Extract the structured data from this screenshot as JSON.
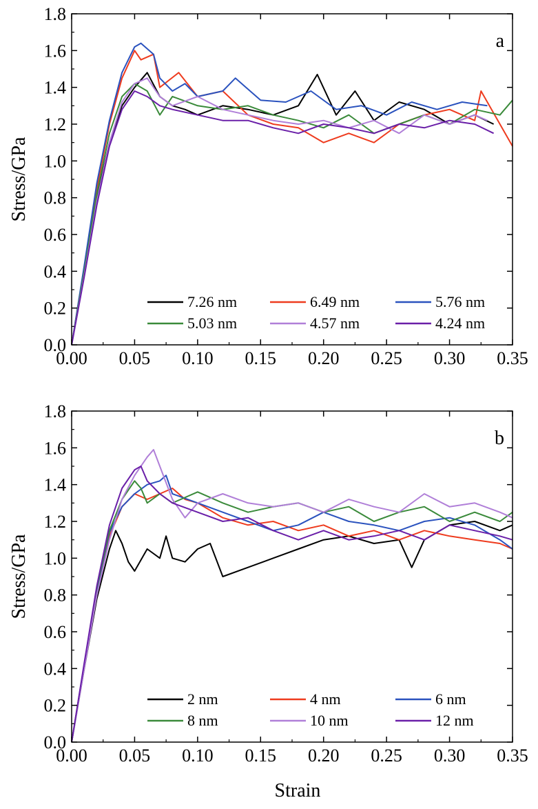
{
  "chart_data": [
    {
      "type": "line",
      "panel_label": "a",
      "xlabel": "",
      "ylabel": "Stress/GPa",
      "xlim": [
        0,
        0.35
      ],
      "ylim": [
        0,
        1.8
      ],
      "xticks": [
        "0.00",
        "0.05",
        "0.10",
        "0.15",
        "0.20",
        "0.25",
        "0.30",
        "0.35"
      ],
      "yticks": [
        "0.0",
        "0.2",
        "0.4",
        "0.6",
        "0.8",
        "1.0",
        "1.2",
        "1.4",
        "1.6",
        "1.8"
      ],
      "legend_position": "bottom-right",
      "series": [
        {
          "name": "7.26 nm",
          "color": "#000000",
          "x": [
            0,
            0.01,
            0.02,
            0.03,
            0.04,
            0.05,
            0.06,
            0.07,
            0.08,
            0.09,
            0.1,
            0.12,
            0.14,
            0.16,
            0.18,
            0.195,
            0.21,
            0.225,
            0.24,
            0.26,
            0.28,
            0.3,
            0.32,
            0.335
          ],
          "y": [
            0,
            0.4,
            0.8,
            1.1,
            1.3,
            1.4,
            1.48,
            1.35,
            1.3,
            1.28,
            1.25,
            1.3,
            1.28,
            1.25,
            1.3,
            1.47,
            1.25,
            1.38,
            1.22,
            1.32,
            1.28,
            1.2,
            1.25,
            1.2
          ]
        },
        {
          "name": "6.49 nm",
          "color": "#ee3b1e",
          "x": [
            0,
            0.01,
            0.02,
            0.03,
            0.04,
            0.05,
            0.055,
            0.065,
            0.07,
            0.085,
            0.1,
            0.12,
            0.14,
            0.16,
            0.18,
            0.2,
            0.22,
            0.24,
            0.26,
            0.28,
            0.3,
            0.32,
            0.325,
            0.35
          ],
          "y": [
            0,
            0.42,
            0.85,
            1.2,
            1.45,
            1.6,
            1.55,
            1.58,
            1.4,
            1.48,
            1.35,
            1.38,
            1.25,
            1.2,
            1.18,
            1.1,
            1.15,
            1.1,
            1.2,
            1.25,
            1.28,
            1.22,
            1.38,
            1.08
          ]
        },
        {
          "name": "5.76 nm",
          "color": "#2a52be",
          "x": [
            0,
            0.01,
            0.02,
            0.03,
            0.04,
            0.05,
            0.055,
            0.065,
            0.07,
            0.08,
            0.09,
            0.1,
            0.12,
            0.13,
            0.15,
            0.17,
            0.19,
            0.21,
            0.23,
            0.25,
            0.27,
            0.29,
            0.31,
            0.33
          ],
          "y": [
            0,
            0.43,
            0.88,
            1.22,
            1.48,
            1.62,
            1.64,
            1.58,
            1.45,
            1.38,
            1.42,
            1.35,
            1.38,
            1.45,
            1.33,
            1.32,
            1.38,
            1.28,
            1.3,
            1.25,
            1.32,
            1.28,
            1.32,
            1.3
          ]
        },
        {
          "name": "5.03 nm",
          "color": "#3a8a3a",
          "x": [
            0,
            0.01,
            0.02,
            0.03,
            0.04,
            0.05,
            0.06,
            0.07,
            0.08,
            0.1,
            0.12,
            0.14,
            0.16,
            0.18,
            0.2,
            0.22,
            0.24,
            0.26,
            0.28,
            0.3,
            0.32,
            0.34,
            0.35
          ],
          "y": [
            0,
            0.4,
            0.82,
            1.15,
            1.35,
            1.42,
            1.38,
            1.25,
            1.35,
            1.3,
            1.28,
            1.3,
            1.25,
            1.22,
            1.18,
            1.25,
            1.15,
            1.2,
            1.25,
            1.2,
            1.28,
            1.25,
            1.33
          ]
        },
        {
          "name": "4.57 nm",
          "color": "#b07fd8",
          "x": [
            0,
            0.01,
            0.02,
            0.03,
            0.04,
            0.05,
            0.06,
            0.07,
            0.08,
            0.1,
            0.12,
            0.14,
            0.16,
            0.18,
            0.2,
            0.22,
            0.24,
            0.26,
            0.28,
            0.3,
            0.32,
            0.33
          ],
          "y": [
            0,
            0.38,
            0.78,
            1.1,
            1.32,
            1.42,
            1.45,
            1.35,
            1.3,
            1.35,
            1.28,
            1.25,
            1.22,
            1.2,
            1.22,
            1.18,
            1.22,
            1.15,
            1.25,
            1.2,
            1.25,
            1.22
          ]
        },
        {
          "name": "4.24 nm",
          "color": "#6a1fa8",
          "x": [
            0,
            0.01,
            0.02,
            0.03,
            0.04,
            0.05,
            0.06,
            0.07,
            0.08,
            0.1,
            0.12,
            0.14,
            0.16,
            0.18,
            0.2,
            0.22,
            0.24,
            0.26,
            0.28,
            0.3,
            0.32,
            0.335
          ],
          "y": [
            0,
            0.37,
            0.76,
            1.08,
            1.28,
            1.38,
            1.35,
            1.3,
            1.28,
            1.25,
            1.22,
            1.22,
            1.18,
            1.15,
            1.2,
            1.18,
            1.15,
            1.2,
            1.18,
            1.22,
            1.2,
            1.15
          ]
        }
      ]
    },
    {
      "type": "line",
      "panel_label": "b",
      "xlabel": "Strain",
      "ylabel": "Stress/GPa",
      "xlim": [
        0,
        0.35
      ],
      "ylim": [
        0,
        1.8
      ],
      "xticks": [
        "0.00",
        "0.05",
        "0.10",
        "0.15",
        "0.20",
        "0.25",
        "0.30",
        "0.35"
      ],
      "yticks": [
        "0.0",
        "0.2",
        "0.4",
        "0.6",
        "0.8",
        "1.0",
        "1.2",
        "1.4",
        "1.6",
        "1.8"
      ],
      "legend_position": "bottom-right",
      "series": [
        {
          "name": "2 nm",
          "color": "#000000",
          "x": [
            0,
            0.01,
            0.02,
            0.03,
            0.035,
            0.04,
            0.045,
            0.05,
            0.06,
            0.07,
            0.075,
            0.08,
            0.09,
            0.1,
            0.11,
            0.12,
            0.14,
            0.16,
            0.18,
            0.2,
            0.22,
            0.24,
            0.26,
            0.27,
            0.28,
            0.3,
            0.32,
            0.34,
            0.35
          ],
          "y": [
            0,
            0.4,
            0.78,
            1.05,
            1.15,
            1.08,
            0.98,
            0.93,
            1.05,
            1.0,
            1.12,
            1.0,
            0.98,
            1.05,
            1.08,
            0.9,
            0.95,
            1.0,
            1.05,
            1.1,
            1.12,
            1.08,
            1.1,
            0.95,
            1.1,
            1.18,
            1.2,
            1.15,
            1.18
          ]
        },
        {
          "name": "4 nm",
          "color": "#ee3b1e",
          "x": [
            0,
            0.01,
            0.02,
            0.03,
            0.04,
            0.05,
            0.06,
            0.07,
            0.08,
            0.09,
            0.1,
            0.12,
            0.14,
            0.16,
            0.18,
            0.2,
            0.22,
            0.24,
            0.26,
            0.28,
            0.3,
            0.32,
            0.34,
            0.35
          ],
          "y": [
            0,
            0.42,
            0.82,
            1.12,
            1.28,
            1.35,
            1.32,
            1.35,
            1.38,
            1.32,
            1.3,
            1.22,
            1.18,
            1.2,
            1.15,
            1.18,
            1.12,
            1.15,
            1.1,
            1.15,
            1.12,
            1.1,
            1.08,
            1.05
          ]
        },
        {
          "name": "6 nm",
          "color": "#2a52be",
          "x": [
            0,
            0.01,
            0.02,
            0.03,
            0.04,
            0.05,
            0.06,
            0.07,
            0.075,
            0.08,
            0.1,
            0.12,
            0.14,
            0.16,
            0.18,
            0.2,
            0.22,
            0.24,
            0.26,
            0.28,
            0.3,
            0.32,
            0.34,
            0.35
          ],
          "y": [
            0,
            0.41,
            0.83,
            1.14,
            1.28,
            1.35,
            1.4,
            1.42,
            1.45,
            1.35,
            1.3,
            1.25,
            1.2,
            1.15,
            1.18,
            1.25,
            1.2,
            1.18,
            1.15,
            1.2,
            1.22,
            1.18,
            1.1,
            1.05
          ]
        },
        {
          "name": "8 nm",
          "color": "#3a8a3a",
          "x": [
            0,
            0.01,
            0.02,
            0.03,
            0.04,
            0.05,
            0.055,
            0.06,
            0.07,
            0.08,
            0.1,
            0.12,
            0.14,
            0.16,
            0.18,
            0.2,
            0.22,
            0.24,
            0.26,
            0.28,
            0.3,
            0.32,
            0.34,
            0.35
          ],
          "y": [
            0,
            0.42,
            0.84,
            1.15,
            1.32,
            1.42,
            1.38,
            1.3,
            1.35,
            1.3,
            1.36,
            1.3,
            1.25,
            1.28,
            1.3,
            1.25,
            1.28,
            1.2,
            1.25,
            1.28,
            1.2,
            1.25,
            1.2,
            1.25
          ]
        },
        {
          "name": "10 nm",
          "color": "#b07fd8",
          "x": [
            0,
            0.01,
            0.02,
            0.03,
            0.04,
            0.05,
            0.06,
            0.065,
            0.07,
            0.08,
            0.09,
            0.1,
            0.12,
            0.14,
            0.16,
            0.18,
            0.2,
            0.22,
            0.24,
            0.26,
            0.28,
            0.3,
            0.32,
            0.34,
            0.35
          ],
          "y": [
            0,
            0.4,
            0.8,
            1.1,
            1.32,
            1.45,
            1.55,
            1.59,
            1.5,
            1.32,
            1.22,
            1.3,
            1.35,
            1.3,
            1.28,
            1.3,
            1.25,
            1.32,
            1.28,
            1.25,
            1.35,
            1.28,
            1.3,
            1.25,
            1.22
          ]
        },
        {
          "name": "12 nm",
          "color": "#6a1fa8",
          "x": [
            0,
            0.01,
            0.02,
            0.03,
            0.04,
            0.05,
            0.055,
            0.06,
            0.07,
            0.08,
            0.1,
            0.12,
            0.14,
            0.16,
            0.18,
            0.2,
            0.22,
            0.24,
            0.26,
            0.28,
            0.3,
            0.32,
            0.34,
            0.35
          ],
          "y": [
            0,
            0.43,
            0.85,
            1.18,
            1.38,
            1.48,
            1.5,
            1.42,
            1.35,
            1.3,
            1.25,
            1.2,
            1.22,
            1.15,
            1.1,
            1.15,
            1.1,
            1.12,
            1.15,
            1.1,
            1.18,
            1.15,
            1.12,
            1.1
          ]
        }
      ]
    }
  ]
}
